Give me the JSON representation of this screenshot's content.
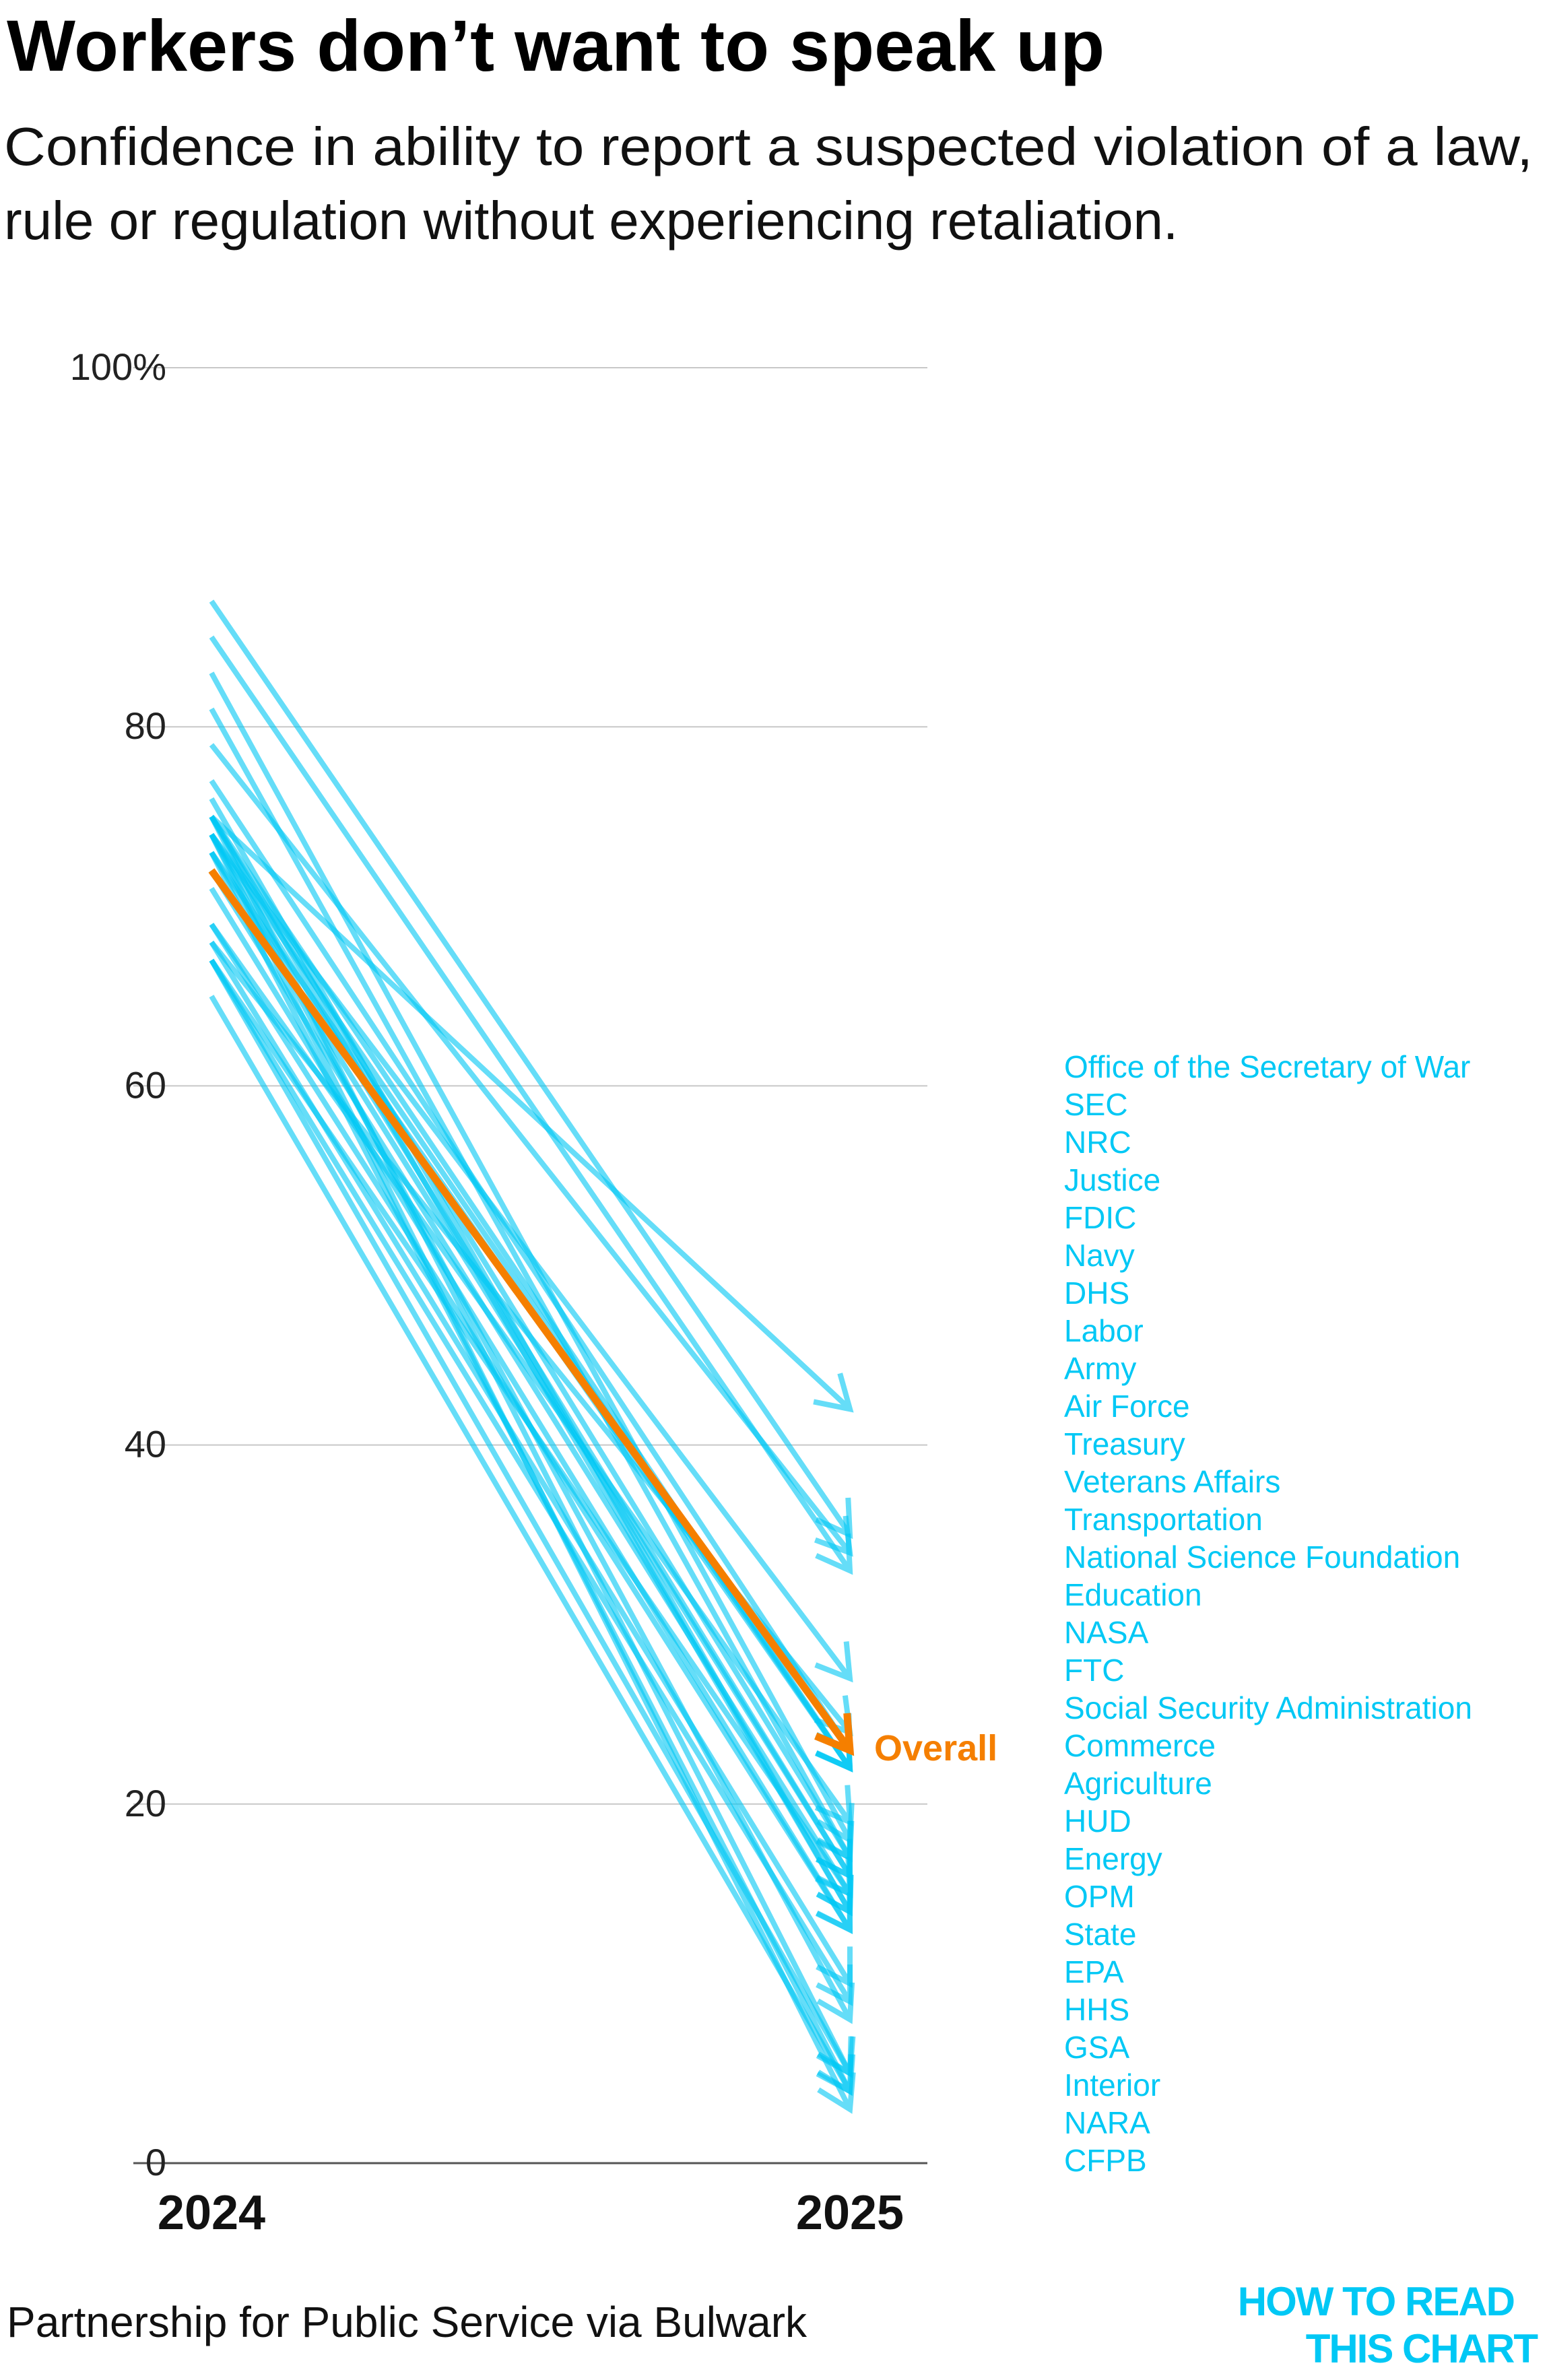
{
  "chart_data": {
    "type": "slope",
    "title": "Workers don’t want to speak up",
    "subtitle_lines": [
      "Confidence in ability to report a suspected violation of a law,",
      "rule or regulation without experiencing retaliation."
    ],
    "x": [
      "2024",
      "2025"
    ],
    "ylim": [
      0,
      100
    ],
    "yticks": [
      0,
      20,
      40,
      60,
      80,
      100
    ],
    "ytick_labels": [
      "0",
      "20",
      "40",
      "60",
      "80",
      "100%"
    ],
    "grid": true,
    "series": [
      {
        "name": "Office of the Secretary of War",
        "values": [
          75,
          42
        ]
      },
      {
        "name": "SEC",
        "values": [
          87,
          35
        ]
      },
      {
        "name": "NRC",
        "values": [
          79,
          34
        ]
      },
      {
        "name": "Justice",
        "values": [
          85,
          33
        ]
      },
      {
        "name": "FDIC",
        "values": [
          74,
          27
        ]
      },
      {
        "name": "Navy",
        "values": [
          68,
          24
        ]
      },
      {
        "name": "DHS",
        "values": [
          77,
          23
        ]
      },
      {
        "name": "Labor",
        "values": [
          74,
          22
        ]
      },
      {
        "name": "Army",
        "values": [
          75,
          22
        ]
      },
      {
        "name": "Air Force",
        "values": [
          73,
          22
        ]
      },
      {
        "name": "Treasury",
        "values": [
          69,
          19
        ]
      },
      {
        "name": "Veterans Affairs",
        "values": [
          83,
          18
        ]
      },
      {
        "name": "Transportation",
        "values": [
          75,
          17
        ]
      },
      {
        "name": "National Science Foundation",
        "values": [
          81,
          17
        ]
      },
      {
        "name": "Education",
        "values": [
          73,
          16
        ]
      },
      {
        "name": "NASA",
        "values": [
          74,
          16
        ]
      },
      {
        "name": "FTC",
        "values": [
          67,
          15
        ]
      },
      {
        "name": "Social Security Administration",
        "values": [
          72,
          15
        ]
      },
      {
        "name": "Commerce",
        "values": [
          76,
          14
        ]
      },
      {
        "name": "Agriculture",
        "values": [
          75,
          14
        ]
      },
      {
        "name": "HUD",
        "values": [
          71,
          13
        ]
      },
      {
        "name": "Energy",
        "values": [
          69,
          13
        ]
      },
      {
        "name": "OPM",
        "values": [
          68,
          10
        ]
      },
      {
        "name": "State",
        "values": [
          67,
          9
        ]
      },
      {
        "name": "EPA",
        "values": [
          74,
          8
        ]
      },
      {
        "name": "HHS",
        "values": [
          75,
          5
        ]
      },
      {
        "name": "GSA",
        "values": [
          67,
          5
        ]
      },
      {
        "name": "Interior",
        "values": [
          73,
          4
        ]
      },
      {
        "name": "NARA",
        "values": [
          65,
          4
        ]
      },
      {
        "name": "CFPB",
        "values": [
          74,
          3
        ]
      }
    ],
    "highlight": {
      "name": "Overall",
      "values": [
        72,
        23
      ]
    }
  },
  "source": "Partnership for Public Service via Bulwark",
  "logo": [
    "HOW TO READ",
    "THIS CHART"
  ],
  "colors": {
    "agency": "#00c8f5",
    "overall": "#f57f00",
    "grid": "#c8c8c8"
  }
}
